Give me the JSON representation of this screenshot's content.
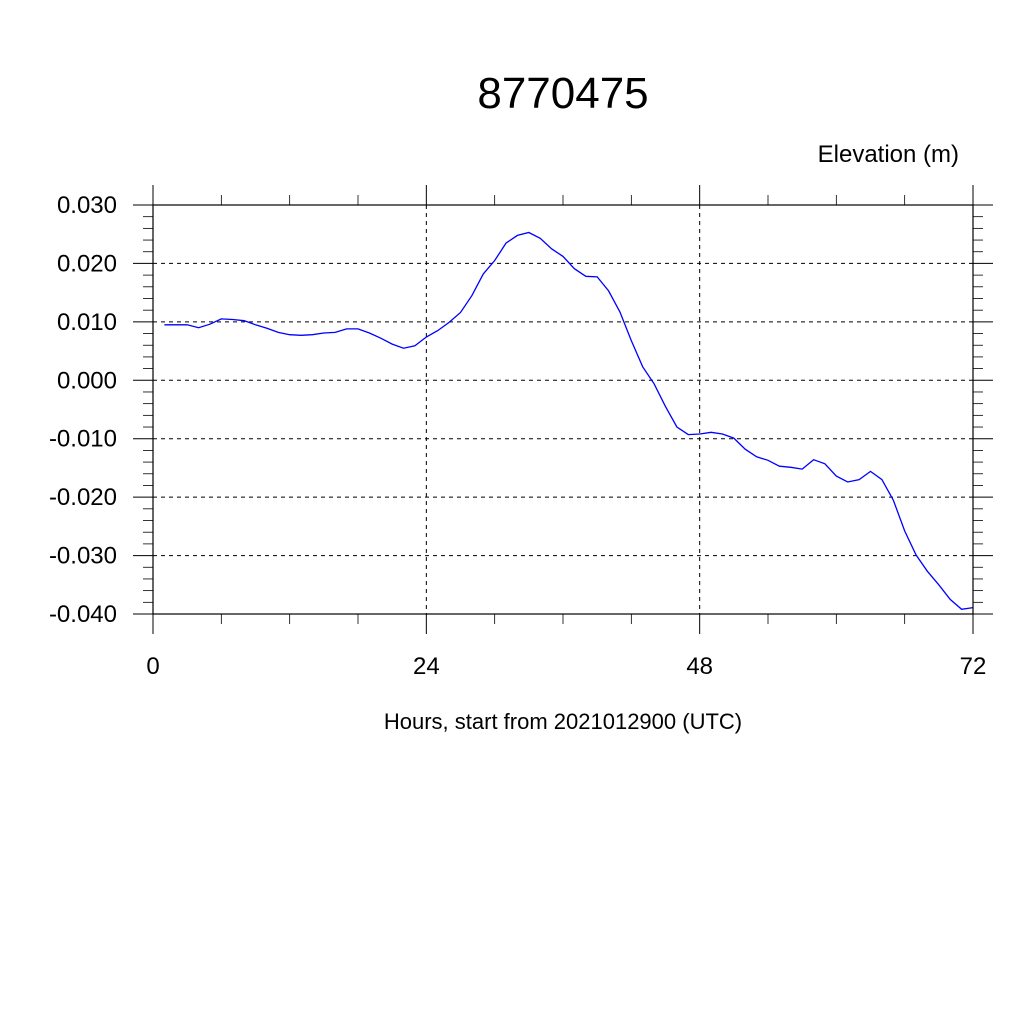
{
  "chart_data": {
    "type": "line",
    "title": "8770475",
    "ylabel": "Elevation (m)",
    "xlabel": "Hours, start from 2021012900 (UTC)",
    "xlim": [
      0,
      72
    ],
    "ylim": [
      -0.04,
      0.03
    ],
    "x_ticks": [
      0,
      24,
      48,
      72
    ],
    "x_tick_labels": [
      "0",
      "24",
      "48",
      "72"
    ],
    "y_ticks": [
      0.03,
      0.02,
      0.01,
      0.0,
      -0.01,
      -0.02,
      -0.03,
      -0.04
    ],
    "y_tick_labels": [
      "0.030",
      "0.020",
      "0.010",
      "0.000",
      "-0.010",
      "-0.020",
      "-0.030",
      "-0.040"
    ],
    "grid": true,
    "line_color": "#0000ff",
    "series": [
      {
        "x": [
          1,
          2,
          3,
          4,
          5,
          6,
          7,
          8,
          9,
          10,
          11,
          12,
          13,
          14,
          15,
          16,
          17,
          18,
          19,
          20,
          21,
          22,
          23,
          24,
          25,
          26,
          27,
          28,
          29,
          30,
          31,
          32,
          33,
          34,
          35,
          36,
          37,
          38,
          39,
          40,
          41,
          42,
          43,
          44,
          45,
          46,
          47,
          48,
          49,
          50,
          51,
          52,
          53,
          54,
          55,
          56,
          57,
          58,
          59,
          60,
          61,
          62,
          63,
          64,
          65,
          66,
          67,
          68,
          69,
          70,
          71,
          72
        ],
        "y": [
          0.0095,
          0.0095,
          0.0095,
          0.009,
          0.0096,
          0.0105,
          0.0104,
          0.0102,
          0.0095,
          0.0089,
          0.0082,
          0.0078,
          0.0077,
          0.0078,
          0.0081,
          0.0082,
          0.0088,
          0.0088,
          0.0081,
          0.0072,
          0.0062,
          0.0055,
          0.0059,
          0.0074,
          0.0085,
          0.0099,
          0.0116,
          0.0145,
          0.0182,
          0.0205,
          0.0235,
          0.0248,
          0.0253,
          0.0243,
          0.0225,
          0.0212,
          0.0191,
          0.0178,
          0.0177,
          0.0153,
          0.0117,
          0.0068,
          0.0023,
          -0.0006,
          -0.0045,
          -0.008,
          -0.0093,
          -0.0092,
          -0.0089,
          -0.0092,
          -0.0099,
          -0.0118,
          -0.0131,
          -0.0137,
          -0.0147,
          -0.0149,
          -0.0152,
          -0.0136,
          -0.0143,
          -0.0164,
          -0.0174,
          -0.017,
          -0.0156,
          -0.017,
          -0.0205,
          -0.0258,
          -0.0299,
          -0.0327,
          -0.035,
          -0.0375,
          -0.0392,
          -0.0389
        ]
      }
    ]
  }
}
